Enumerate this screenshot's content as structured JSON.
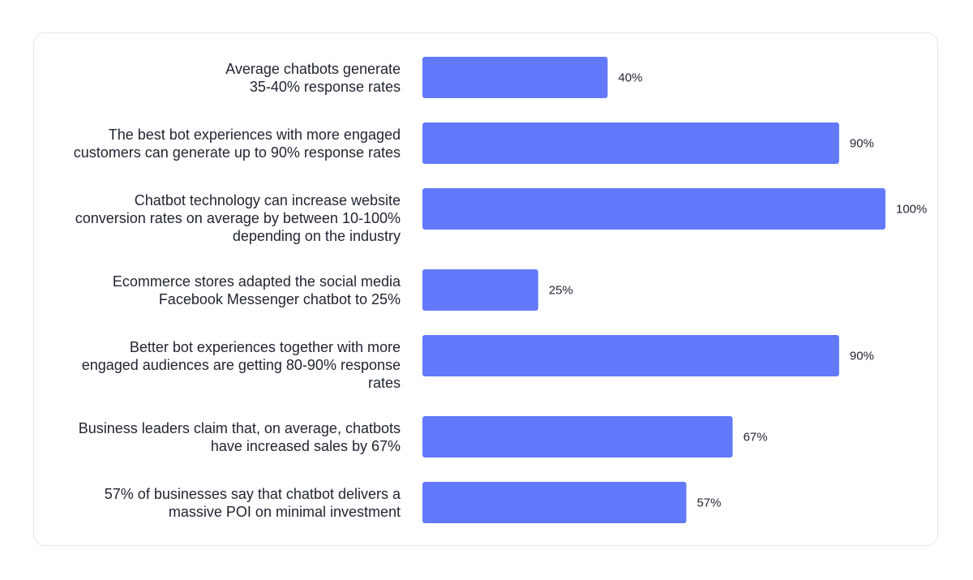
{
  "chart_data": {
    "type": "bar",
    "orientation": "horizontal",
    "title": "",
    "xlabel": "",
    "ylabel": "",
    "xlim": [
      0,
      100
    ],
    "grid": false,
    "legend": "none",
    "bar_color": "#6279fb",
    "categories": [
      [
        "Average chatbots generate",
        "35-40% response rates"
      ],
      [
        "The best bot experiences with more engaged",
        "customers can generate up to 90% response rates"
      ],
      [
        "Chatbot technology can increase website",
        "conversion rates on average by between 10-100%",
        "depending on the industry"
      ],
      [
        "Ecommerce stores adapted the social media",
        "Facebook Messenger chatbot to 25%"
      ],
      [
        "Better bot experiences together with more",
        "engaged audiences are getting 80-90% response",
        "rates"
      ],
      [
        "Business leaders claim that, on average, chatbots",
        "have increased sales by 67%"
      ],
      [
        "57% of businesses say that chatbot delivers a",
        "massive POI on minimal investment"
      ]
    ],
    "values": [
      40,
      90,
      100,
      25,
      90,
      67,
      57
    ],
    "value_labels": [
      "40%",
      "90%",
      "100%",
      "25%",
      "90%",
      "67%",
      "57%"
    ]
  }
}
